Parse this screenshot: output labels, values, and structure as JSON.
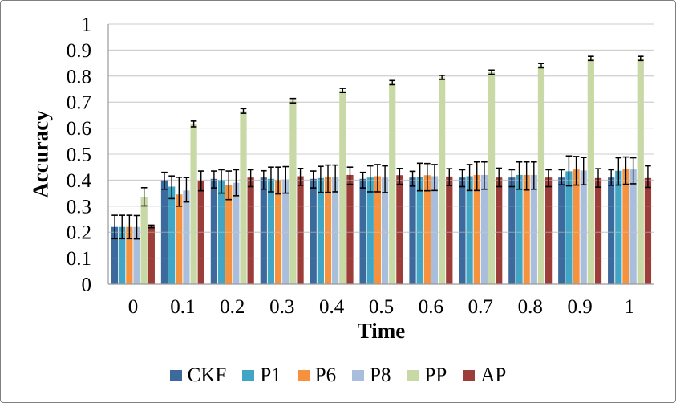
{
  "chart_data": {
    "type": "bar",
    "title": "",
    "xlabel": "Time",
    "ylabel": "Accuracy",
    "categories": [
      "0",
      "0.1",
      "0.2",
      "0.3",
      "0.4",
      "0.5",
      "0.6",
      "0.7",
      "0.8",
      "0.9",
      "1"
    ],
    "y_tick_labels": [
      "0",
      "0.1",
      "0.2",
      "0.3",
      "0.4",
      "0.5",
      "0.6",
      "0.7",
      "0.8",
      "0.9",
      "1"
    ],
    "ylim": [
      0,
      1
    ],
    "y_step": 0.1,
    "grid": "horizontal",
    "legend_position": "bottom",
    "error_bars": true,
    "series": [
      {
        "name": "CKF",
        "color": "#3C6A9D",
        "values": [
          0.22,
          0.4,
          0.405,
          0.41,
          0.405,
          0.405,
          0.41,
          0.41,
          0.41,
          0.41,
          0.41
        ],
        "err_minus": [
          0.045,
          0.035,
          0.035,
          0.045,
          0.035,
          0.035,
          0.033,
          0.035,
          0.035,
          0.028,
          0.03
        ],
        "err_plus": [
          0.045,
          0.03,
          0.03,
          0.026,
          0.03,
          0.025,
          0.024,
          0.03,
          0.03,
          0.03,
          0.03
        ]
      },
      {
        "name": "P1",
        "color": "#41A6C6",
        "values": [
          0.22,
          0.375,
          0.4,
          0.405,
          0.408,
          0.41,
          0.413,
          0.415,
          0.42,
          0.434,
          0.436
        ],
        "err_minus": [
          0.045,
          0.046,
          0.05,
          0.05,
          0.055,
          0.055,
          0.054,
          0.055,
          0.055,
          0.056,
          0.055
        ],
        "err_plus": [
          0.045,
          0.041,
          0.04,
          0.045,
          0.045,
          0.045,
          0.052,
          0.045,
          0.05,
          0.059,
          0.05
        ]
      },
      {
        "name": "P6",
        "color": "#F6913E",
        "values": [
          0.22,
          0.345,
          0.38,
          0.4,
          0.413,
          0.415,
          0.419,
          0.42,
          0.42,
          0.441,
          0.444
        ],
        "err_minus": [
          0.045,
          0.045,
          0.055,
          0.053,
          0.06,
          0.06,
          0.06,
          0.06,
          0.058,
          0.06,
          0.06
        ],
        "err_plus": [
          0.045,
          0.066,
          0.055,
          0.05,
          0.045,
          0.045,
          0.045,
          0.05,
          0.05,
          0.05,
          0.045
        ]
      },
      {
        "name": "P8",
        "color": "#A9BDDC",
        "values": [
          0.22,
          0.36,
          0.39,
          0.403,
          0.413,
          0.41,
          0.415,
          0.42,
          0.42,
          0.437,
          0.441
        ],
        "err_minus": [
          0.046,
          0.044,
          0.05,
          0.053,
          0.058,
          0.058,
          0.055,
          0.055,
          0.055,
          0.055,
          0.055
        ],
        "err_plus": [
          0.044,
          0.05,
          0.05,
          0.049,
          0.045,
          0.045,
          0.045,
          0.05,
          0.05,
          0.05,
          0.045
        ]
      },
      {
        "name": "PP",
        "color": "#C9D9A6",
        "values": [
          0.335,
          0.615,
          0.665,
          0.705,
          0.745,
          0.775,
          0.795,
          0.815,
          0.84,
          0.868,
          0.868
        ],
        "err_minus": [
          0.034,
          0.01,
          0.008,
          0.008,
          0.008,
          0.008,
          0.008,
          0.008,
          0.008,
          0.008,
          0.008
        ],
        "err_plus": [
          0.036,
          0.012,
          0.01,
          0.009,
          0.008,
          0.008,
          0.008,
          0.008,
          0.008,
          0.008,
          0.008
        ]
      },
      {
        "name": "AP",
        "color": "#9C3D39",
        "values": [
          0.222,
          0.395,
          0.41,
          0.415,
          0.42,
          0.419,
          0.414,
          0.41,
          0.41,
          0.408,
          0.408
        ],
        "err_minus": [
          0.005,
          0.036,
          0.035,
          0.035,
          0.036,
          0.035,
          0.035,
          0.035,
          0.035,
          0.035,
          0.036
        ],
        "err_plus": [
          0.005,
          0.04,
          0.03,
          0.03,
          0.03,
          0.026,
          0.03,
          0.036,
          0.03,
          0.036,
          0.047
        ]
      }
    ],
    "style": {
      "grid_color": "#C9C9C9",
      "grid_overlay_color": "rgba(205,205,205,0.55)",
      "axis_color": "#9A9A9A",
      "error_bar_color": "#000000",
      "frame_border_color": "#7F7F7F",
      "background": "#FFFFFF",
      "text_color": "#000000"
    }
  }
}
